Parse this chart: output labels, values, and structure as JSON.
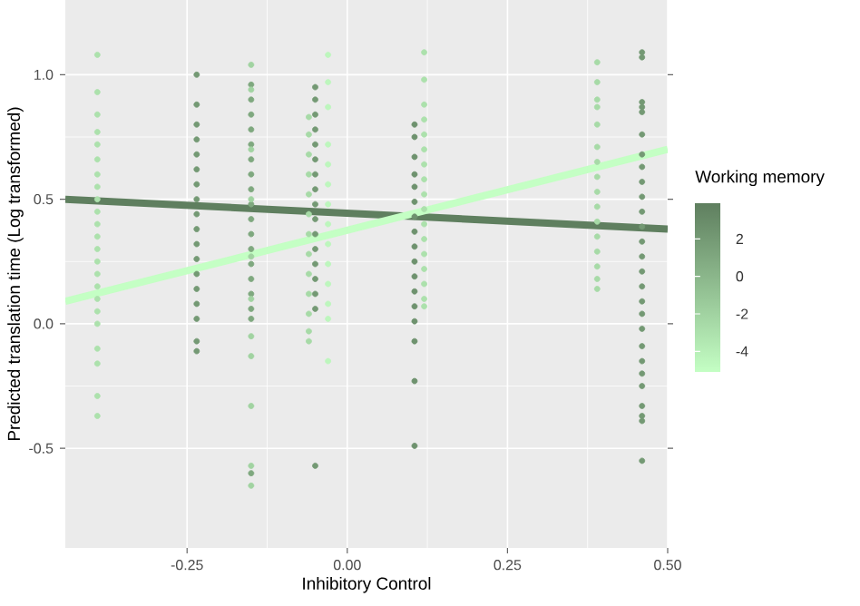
{
  "chart_data": {
    "type": "scatter",
    "xlabel": "Inhibitory Control",
    "ylabel": "Predicted translation time (Log transformed)",
    "clabel": "Working memory",
    "xlim": [
      -0.44,
      0.5
    ],
    "ylim": [
      -0.9,
      1.3
    ],
    "xticks": [
      {
        "value": -0.25,
        "label": "-0.25"
      },
      {
        "value": 0,
        "label": "0.00"
      },
      {
        "value": 0.25,
        "label": "0.25"
      },
      {
        "value": 0.5,
        "label": "0.50"
      }
    ],
    "yticks": [
      -0.5,
      {
        "value": 0,
        "label": "0.0"
      },
      0.5,
      {
        "value": 1,
        "label": "1.0"
      }
    ],
    "clim": [
      -5.1,
      3.9
    ],
    "cticks": [
      -4,
      -2,
      0,
      2
    ],
    "grid": true,
    "marker": "circle",
    "series": [
      {
        "x": [
          -0.39,
          -0.39,
          -0.39,
          -0.39,
          -0.39,
          -0.39,
          -0.39,
          -0.39,
          -0.39,
          -0.39,
          -0.39,
          -0.39,
          -0.39,
          -0.39,
          -0.39,
          -0.39,
          -0.39,
          -0.39,
          -0.39,
          -0.39,
          -0.39,
          -0.39,
          -0.39
        ],
        "values": [
          1.08,
          0.93,
          0.84,
          0.77,
          0.72,
          0.66,
          0.6,
          0.55,
          0.5,
          0.45,
          0.4,
          0.35,
          0.3,
          0.25,
          0.2,
          0.15,
          0.1,
          0.05,
          0.0,
          -0.1,
          -0.16,
          -0.29,
          -0.37
        ],
        "cvalues": [
          -3,
          -3,
          -3,
          -3,
          -3,
          -3,
          -3,
          -3,
          -3,
          -3,
          -3,
          -3,
          -3,
          -3,
          -3,
          -3,
          -3,
          -3,
          -3,
          -3,
          -3,
          -3,
          -3
        ]
      },
      {
        "x": [
          -0.235,
          -0.235,
          -0.235,
          -0.235,
          -0.235,
          -0.235,
          -0.235,
          -0.235,
          -0.235,
          -0.235,
          -0.235,
          -0.235,
          -0.235,
          -0.235,
          -0.235,
          -0.235,
          -0.235,
          -0.235
        ],
        "values": [
          1.0,
          0.88,
          0.8,
          0.74,
          0.68,
          0.62,
          0.56,
          0.5,
          0.44,
          0.38,
          0.32,
          0.26,
          0.2,
          0.14,
          0.08,
          0.02,
          -0.07,
          -0.11
        ],
        "cvalues": [
          2,
          2,
          2,
          2,
          2,
          2,
          2,
          2,
          2,
          2,
          2,
          2,
          2,
          2,
          2,
          2,
          2,
          2
        ]
      },
      {
        "x": [
          -0.15,
          -0.15,
          -0.15,
          -0.15,
          -0.15,
          -0.15,
          -0.15,
          -0.15,
          -0.15,
          -0.15,
          -0.15,
          -0.15,
          -0.15,
          -0.15,
          -0.15,
          -0.15,
          -0.15,
          -0.15
        ],
        "values": [
          0.96,
          0.9,
          0.84,
          0.78,
          0.72,
          0.66,
          0.6,
          0.54,
          0.48,
          0.42,
          0.36,
          0.3,
          0.24,
          0.18,
          0.12,
          0.06,
          0.02,
          -0.6
        ],
        "cvalues": [
          1,
          1,
          1,
          1,
          1,
          1,
          1,
          1,
          1,
          1,
          1,
          1,
          1,
          1,
          1,
          1,
          1,
          1
        ]
      },
      {
        "x": [
          -0.15,
          -0.15,
          -0.15,
          -0.15,
          -0.15,
          -0.15,
          -0.15,
          -0.15,
          -0.15,
          -0.15,
          -0.15
        ],
        "values": [
          1.04,
          0.94,
          0.7,
          0.5,
          0.27,
          0.1,
          -0.05,
          -0.13,
          -0.33,
          -0.57,
          -0.65
        ],
        "cvalues": [
          -2,
          -2,
          -2,
          -2,
          -2,
          -2,
          -2,
          -2,
          -2,
          -2,
          -2
        ]
      },
      {
        "x": [
          -0.05,
          -0.05,
          -0.05,
          -0.05,
          -0.05,
          -0.05,
          -0.05,
          -0.05,
          -0.05,
          -0.05,
          -0.05,
          -0.05,
          -0.05,
          -0.05,
          -0.05,
          -0.05,
          -0.05
        ],
        "values": [
          0.95,
          0.9,
          0.84,
          0.78,
          0.72,
          0.66,
          0.6,
          0.54,
          0.48,
          0.42,
          0.36,
          0.3,
          0.24,
          0.18,
          0.12,
          0.06,
          -0.57
        ],
        "cvalues": [
          2,
          2,
          2,
          2,
          2,
          2,
          2,
          2,
          2,
          2,
          2,
          2,
          2,
          2,
          2,
          2,
          2
        ]
      },
      {
        "x": [
          -0.06,
          -0.06,
          -0.06,
          -0.06,
          -0.06,
          -0.06,
          -0.06,
          -0.06,
          -0.06,
          -0.06,
          -0.06,
          -0.06,
          -0.06
        ],
        "values": [
          0.83,
          0.76,
          0.68,
          0.6,
          0.52,
          0.44,
          0.36,
          0.28,
          0.2,
          0.12,
          0.04,
          -0.03,
          -0.07
        ],
        "cvalues": [
          -2.5,
          -2.5,
          -2.5,
          -2.5,
          -2.5,
          -2.5,
          -2.5,
          -2.5,
          -2.5,
          -2.5,
          -2.5,
          -2.5,
          -2.5
        ]
      },
      {
        "x": [
          -0.03,
          -0.03,
          -0.03,
          -0.03,
          -0.03,
          -0.03,
          -0.03,
          -0.03,
          -0.03,
          -0.03,
          -0.03,
          -0.03,
          -0.03,
          -0.03
        ],
        "values": [
          1.08,
          0.97,
          0.87,
          0.72,
          0.64,
          0.56,
          0.48,
          0.4,
          0.32,
          0.24,
          0.16,
          0.08,
          0.02,
          -0.15
        ],
        "cvalues": [
          -4.5,
          -4.5,
          -4.5,
          -4.5,
          -4.5,
          -4.5,
          -4.5,
          -4.5,
          -4.5,
          -4.5,
          -4.5,
          -4.5,
          -4.5,
          -4.5
        ]
      },
      {
        "x": [
          0.105,
          0.105,
          0.105,
          0.105,
          0.105,
          0.105,
          0.105,
          0.105,
          0.105,
          0.105,
          0.105,
          0.105,
          0.105,
          0.105,
          0.105,
          0.105,
          0.105
        ],
        "values": [
          0.8,
          0.75,
          0.67,
          0.6,
          0.55,
          0.49,
          0.43,
          0.37,
          0.31,
          0.25,
          0.19,
          0.13,
          0.07,
          0.01,
          -0.07,
          -0.23,
          -0.49
        ],
        "cvalues": [
          2.5,
          2.5,
          2.5,
          2.5,
          2.5,
          2.5,
          2.5,
          2.5,
          2.5,
          2.5,
          2.5,
          2.5,
          2.5,
          2.5,
          2.5,
          2.5,
          2.5
        ]
      },
      {
        "x": [
          0.12,
          0.12,
          0.12,
          0.12,
          0.12,
          0.12,
          0.12,
          0.12,
          0.12,
          0.12,
          0.12,
          0.12,
          0.12,
          0.12,
          0.12,
          0.12,
          0.12
        ],
        "values": [
          1.09,
          0.98,
          0.88,
          0.82,
          0.76,
          0.7,
          0.64,
          0.58,
          0.52,
          0.46,
          0.4,
          0.34,
          0.28,
          0.22,
          0.16,
          0.1,
          0.07
        ],
        "cvalues": [
          -3,
          -3,
          -3,
          -3,
          -3,
          -3,
          -3,
          -3,
          -3,
          -3,
          -3,
          -3,
          -3,
          -3,
          -3,
          -3,
          -3
        ]
      },
      {
        "x": [
          0.39,
          0.39,
          0.39,
          0.39,
          0.39,
          0.39,
          0.39,
          0.39,
          0.39,
          0.39,
          0.39,
          0.39,
          0.39,
          0.39,
          0.39,
          0.39
        ],
        "values": [
          1.05,
          0.97,
          0.9,
          0.87,
          0.8,
          0.71,
          0.65,
          0.59,
          0.53,
          0.47,
          0.41,
          0.35,
          0.29,
          0.23,
          0.18,
          0.14
        ],
        "cvalues": [
          -2.5,
          -2.5,
          -2.5,
          -2.5,
          -2.5,
          -2.5,
          -2.5,
          -2.5,
          -2.5,
          -2.5,
          -2.5,
          -2.5,
          -2.5,
          -2.5,
          -2.5,
          -2.5
        ]
      },
      {
        "x": [
          0.46,
          0.46,
          0.46,
          0.46,
          0.46,
          0.46,
          0.46,
          0.46,
          0.46,
          0.46,
          0.46,
          0.46,
          0.46,
          0.46,
          0.46,
          0.46,
          0.46,
          0.46,
          0.46,
          0.46,
          0.46,
          0.46,
          0.46,
          0.46,
          0.46,
          0.46,
          0.46
        ],
        "values": [
          1.09,
          1.07,
          0.89,
          0.87,
          0.85,
          0.76,
          0.68,
          0.63,
          0.57,
          0.51,
          0.45,
          0.39,
          0.33,
          0.27,
          0.21,
          0.15,
          0.09,
          0.04,
          -0.02,
          -0.09,
          -0.15,
          -0.2,
          -0.25,
          -0.33,
          -0.37,
          -0.39,
          -0.55
        ],
        "cvalues": [
          2,
          2,
          2,
          2,
          2,
          2,
          2,
          2,
          2,
          2,
          2,
          2,
          2,
          2,
          2,
          2,
          2,
          2,
          2,
          2,
          2,
          2,
          2,
          2,
          2,
          2,
          2
        ]
      },
      {
        "type": "line",
        "marker": "none",
        "color": "#5f7f5f",
        "x": [
          -0.44,
          0.5
        ],
        "values": [
          0.5,
          0.38
        ]
      },
      {
        "type": "line",
        "marker": "none",
        "color": "#c4ffc4",
        "x": [
          -0.44,
          0.5
        ],
        "values": [
          0.09,
          0.7
        ]
      }
    ]
  }
}
